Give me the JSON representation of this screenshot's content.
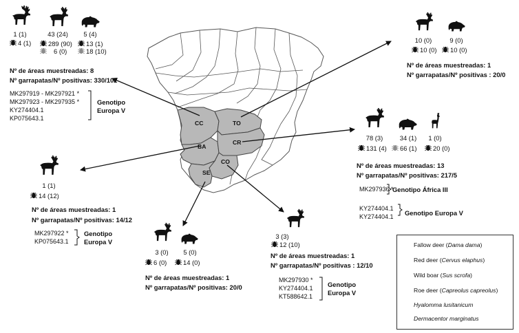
{
  "regions": [
    {
      "code": "CC"
    },
    {
      "code": "TO"
    },
    {
      "code": "BA"
    },
    {
      "code": "CR"
    },
    {
      "code": "CO"
    },
    {
      "code": "SE"
    }
  ],
  "callouts": {
    "top_left": {
      "counts": {
        "fallow_deer": "1 (1)",
        "red_deer": "43 (24)",
        "wild_boar": "5 (4)",
        "hyalomma_1": "4 (1)",
        "hyalomma_2": "289 (90)",
        "dermacentor_2": "6 (0)",
        "hyalomma_3": "13 (1)",
        "dermacentor_3": "18 (10)"
      },
      "areas": "Nº de áreas muestreadas: 8",
      "ticks": "Nº garrapatas/Nº positivas: 330/102",
      "accessions": [
        "MK297919 - MK297921 *",
        "MK297923 - MK297935 *",
        "KY274404.1",
        "KP075643.1"
      ],
      "genotype_line1": "Genotipo",
      "genotype_line2": "Europa V"
    },
    "top_right": {
      "counts": {
        "red_deer": "10 (0)",
        "wild_boar": "9 (0)",
        "hyalomma_1": "10 (0)",
        "hyalomma_2": "10 (0)"
      },
      "areas": "Nº de áreas muestreadas: 1",
      "ticks": "Nº garrapatas/Nº positivas : 20/0"
    },
    "right": {
      "counts": {
        "red_deer": "78 (3)",
        "wild_boar": "34 (1)",
        "roe_deer": "1 (0)",
        "hyalomma_1": "131 (4)",
        "dermacentor_2": "66 (1)",
        "hyalomma_3": "20 (0)"
      },
      "areas": "Nº de áreas muestreadas: 13",
      "ticks": "Nº garrapatas/Nº positivas: 217/5",
      "accession_africa": "MK297936 *",
      "genotype_africa": "Genotipo África III",
      "accessions_europe": [
        "KY274404.1",
        "KY274404.1"
      ],
      "genotype_europe": "Genotipo Europa V"
    },
    "left": {
      "counts": {
        "red_deer": "1 (1)",
        "hyalomma_1": "14 (12)"
      },
      "areas": "Nº de áreas muestreadas: 1",
      "ticks": "Nº garrapatas/Nº positivas: 14/12",
      "accessions": [
        "MK297922 *",
        "KP075643.1"
      ],
      "genotype_line1": "Genotipo",
      "genotype_line2": "Europa V"
    },
    "bottom_left": {
      "counts": {
        "red_deer": "3 (0)",
        "wild_boar": "5 (0)",
        "hyalomma_1": "6 (0)",
        "hyalomma_2": "14 (0)"
      },
      "areas": "Nº de áreas muestreadas: 1",
      "ticks": "Nº garrapatas/Nº positivas: 20/0"
    },
    "bottom_center": {
      "counts": {
        "red_deer": "3 (3)",
        "hyalomma_1": "12 (10)"
      },
      "areas": "Nº de áreas muestreadas: 1",
      "ticks": "Nº garrapatas/Nº positivas : 12/10",
      "accessions": [
        "MK297930 *",
        "KY274404.1",
        "KT588642.1"
      ],
      "genotype_line1": "Genotipo",
      "genotype_line2": "Europa V"
    }
  },
  "legend": [
    {
      "common": "Fallow deer",
      "latin": "Dama dama",
      "icon": "fallow-deer-icon"
    },
    {
      "common": "Red deer",
      "latin": "Cervus elaphus",
      "icon": "red-deer-icon"
    },
    {
      "common": "Wild boar",
      "latin": "Sus scrofa",
      "icon": "wild-boar-icon"
    },
    {
      "common": "Roe deer",
      "latin": "Capreolus capreolus",
      "icon": "roe-deer-icon"
    },
    {
      "common": "",
      "latin": "Hyalomma lusitanicum",
      "icon": "hyalomma-tick-icon"
    },
    {
      "common": "",
      "latin": "Dermacentor marginatus",
      "icon": "dermacentor-tick-icon"
    }
  ],
  "colors": {
    "highlight_region": "#b8b8b8",
    "map_outline": "#555555",
    "map_fill": "#ffffff",
    "ink": "#111111",
    "dermacentor": "#8c8c8c"
  }
}
